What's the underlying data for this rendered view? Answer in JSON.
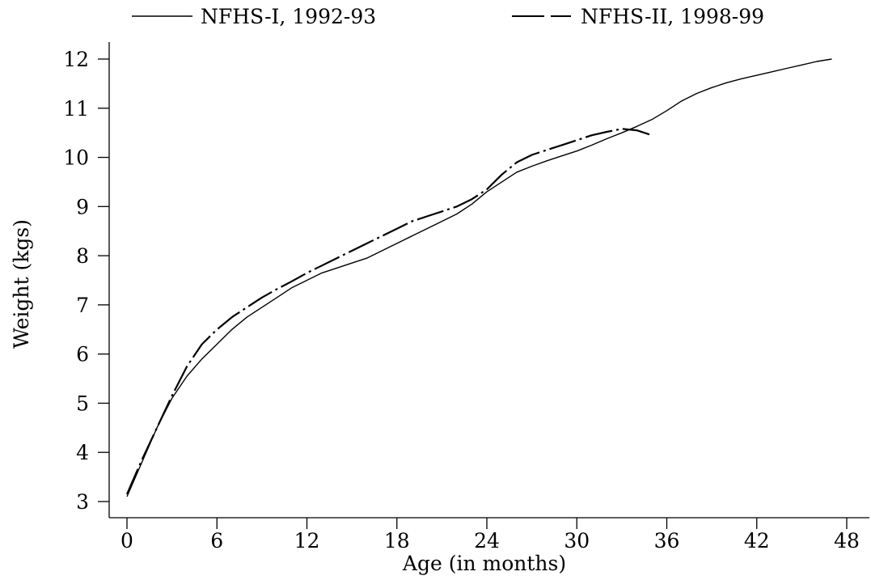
{
  "chart_data": {
    "type": "line",
    "title": "",
    "xlabel": "Age (in months)",
    "ylabel": "Weight (kgs)",
    "xlim": [
      0,
      48
    ],
    "ylim": [
      3,
      12
    ],
    "xticks": [
      0,
      6,
      12,
      18,
      24,
      30,
      36,
      42,
      48
    ],
    "yticks": [
      3,
      4,
      5,
      6,
      7,
      8,
      9,
      10,
      11,
      12
    ],
    "grid": false,
    "legend_position": "top",
    "series": [
      {
        "name": "NFHS-I, 1992-93",
        "style": "solid",
        "color": "#000000",
        "x": [
          0,
          1,
          2,
          3,
          4,
          5,
          6,
          7,
          8,
          9,
          10,
          11,
          12,
          13,
          14,
          15,
          16,
          17,
          18,
          19,
          20,
          21,
          22,
          23,
          24,
          25,
          26,
          27,
          28,
          29,
          30,
          31,
          32,
          33,
          34,
          35,
          36,
          37,
          38,
          39,
          40,
          41,
          42,
          43,
          44,
          45,
          46,
          47
        ],
        "y": [
          3.1,
          3.8,
          4.5,
          5.1,
          5.55,
          5.9,
          6.2,
          6.5,
          6.75,
          6.95,
          7.15,
          7.35,
          7.5,
          7.65,
          7.75,
          7.85,
          7.95,
          8.1,
          8.25,
          8.4,
          8.55,
          8.7,
          8.85,
          9.05,
          9.3,
          9.5,
          9.7,
          9.82,
          9.93,
          10.03,
          10.13,
          10.25,
          10.38,
          10.5,
          10.63,
          10.77,
          10.95,
          11.15,
          11.3,
          11.42,
          11.52,
          11.6,
          11.67,
          11.74,
          11.81,
          11.88,
          11.95,
          12.0
        ]
      },
      {
        "name": "NFHS-II, 1998-99",
        "style": "dashed",
        "color": "#000000",
        "x": [
          0,
          1,
          2,
          3,
          4,
          5,
          6,
          7,
          8,
          9,
          10,
          11,
          12,
          13,
          14,
          15,
          16,
          17,
          18,
          19,
          20,
          21,
          22,
          23,
          24,
          25,
          26,
          27,
          28,
          29,
          30,
          31,
          32,
          33,
          34,
          35
        ],
        "y": [
          3.15,
          3.85,
          4.5,
          5.15,
          5.75,
          6.2,
          6.5,
          6.75,
          6.95,
          7.15,
          7.32,
          7.48,
          7.65,
          7.8,
          7.95,
          8.1,
          8.25,
          8.4,
          8.55,
          8.7,
          8.8,
          8.9,
          9.0,
          9.15,
          9.35,
          9.65,
          9.9,
          10.05,
          10.15,
          10.25,
          10.35,
          10.45,
          10.52,
          10.58,
          10.55,
          10.45
        ]
      }
    ]
  }
}
